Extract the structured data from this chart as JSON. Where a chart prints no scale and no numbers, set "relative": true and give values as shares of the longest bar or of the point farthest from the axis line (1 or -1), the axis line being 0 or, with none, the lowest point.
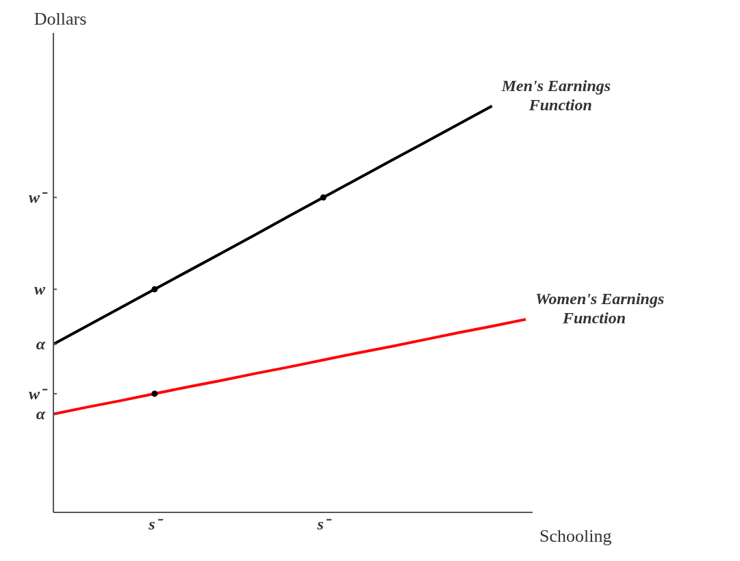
{
  "chart_data": {
    "type": "line",
    "relative": true,
    "xlabel": "Schooling",
    "ylabel": "Dollars",
    "categories": [
      null,
      null,
      null,
      "s⁻",
      null,
      null,
      null,
      null,
      "s⁻",
      null,
      null,
      null,
      null,
      null,
      null
    ],
    "ref_lines": [
      {
        "axis": "y",
        "value": 0.242,
        "label": "α"
      },
      {
        "axis": "y",
        "value": 0.292,
        "label": "w⁻"
      },
      {
        "axis": "y",
        "value": 0.414,
        "label": "α"
      },
      {
        "axis": "y",
        "value": 0.549,
        "label": "w"
      },
      {
        "axis": "y",
        "value": 0.775,
        "label": "w⁻"
      }
    ],
    "grid": false,
    "legend": false,
    "marker": "none",
    "line_style": "solid",
    "series": [
      {
        "name": "Men's Earnings Function",
        "color": "#000000",
        "values": [
          0.414,
          0.459,
          0.504,
          0.549,
          0.594,
          0.639,
          0.684,
          0.73,
          0.775,
          0.82,
          0.865,
          0.91,
          0.955,
          1,
          null
        ]
      },
      {
        "name": "Women's Earnings Function",
        "color": "#ff0000",
        "values": [
          0.242,
          0.259,
          0.275,
          0.292,
          0.309,
          0.325,
          0.342,
          0.358,
          0.375,
          0.392,
          0.408,
          0.425,
          0.442,
          0.458,
          0.475
        ]
      },
      {
        "type": "scatter",
        "color": "#000000",
        "marker": "circle",
        "values": [
          null,
          null,
          null,
          0.549,
          null,
          null,
          null,
          null,
          0.775,
          null,
          null,
          null,
          null,
          null,
          null
        ]
      },
      {
        "type": "scatter",
        "color": "#000000",
        "marker": "circle",
        "values": [
          null,
          null,
          null,
          0.292,
          null,
          null,
          null,
          null,
          null,
          null,
          null,
          null,
          null,
          null,
          null
        ]
      }
    ]
  }
}
